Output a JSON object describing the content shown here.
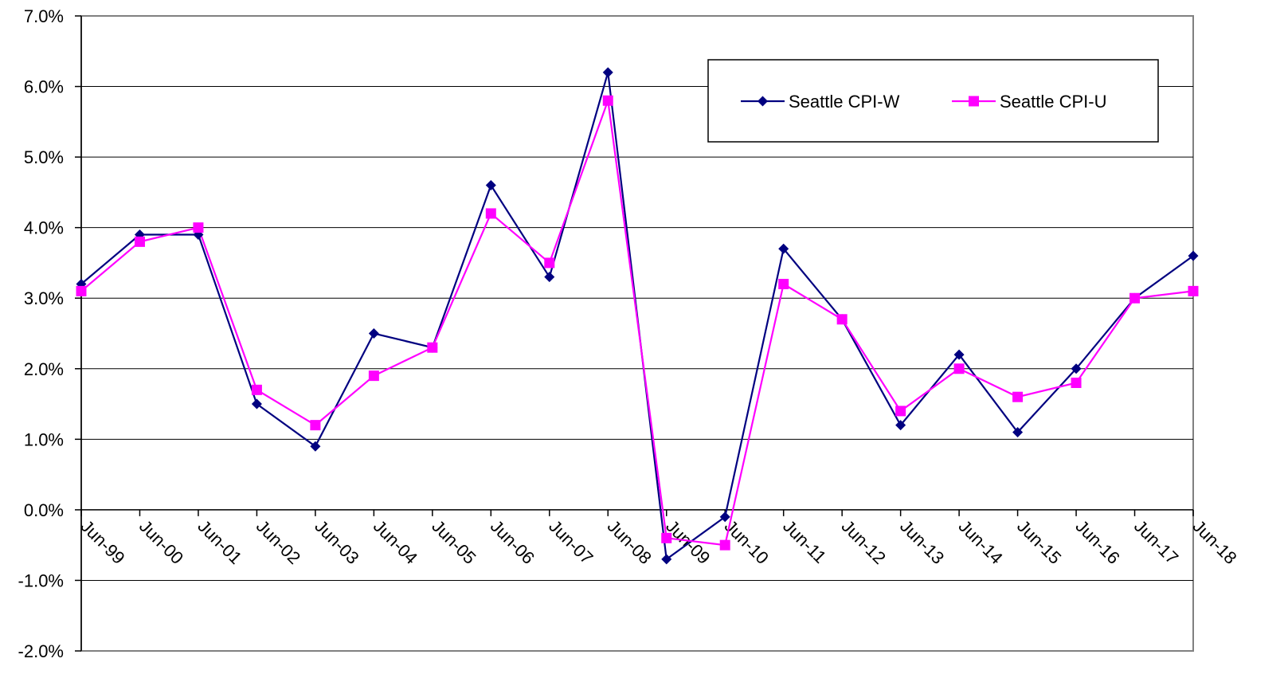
{
  "chart_data": {
    "type": "line",
    "title": "",
    "xlabel": "",
    "ylabel": "",
    "categories": [
      "Jun-99",
      "Jun-00",
      "Jun-01",
      "Jun-02",
      "Jun-03",
      "Jun-04",
      "Jun-05",
      "Jun-06",
      "Jun-07",
      "Jun-08",
      "Jun-09",
      "Jun-10",
      "Jun-11",
      "Jun-12",
      "Jun-13",
      "Jun-14",
      "Jun-15",
      "Jun-16",
      "Jun-17",
      "Jun-18"
    ],
    "ylim": [
      -2.0,
      7.0
    ],
    "yticks": [
      -2.0,
      -1.0,
      0.0,
      1.0,
      2.0,
      3.0,
      4.0,
      5.0,
      6.0,
      7.0
    ],
    "ytick_labels": [
      "-2.0%",
      "-1.0%",
      "0.0%",
      "1.0%",
      "2.0%",
      "3.0%",
      "4.0%",
      "5.0%",
      "6.0%",
      "7.0%"
    ],
    "grid": true,
    "legend_position": "top-right",
    "series": [
      {
        "name": "Seattle CPI-W",
        "color": "#000080",
        "marker": "diamond",
        "values": [
          3.2,
          3.9,
          3.9,
          1.5,
          0.9,
          2.5,
          2.3,
          4.6,
          3.3,
          6.2,
          -0.7,
          -0.1,
          3.7,
          2.7,
          1.2,
          2.2,
          1.1,
          2.0,
          3.0,
          3.6
        ]
      },
      {
        "name": "Seattle CPI-U",
        "color": "#FF00FF",
        "marker": "square",
        "values": [
          3.1,
          3.8,
          4.0,
          1.7,
          1.2,
          1.9,
          2.3,
          4.2,
          3.5,
          5.8,
          -0.4,
          -0.5,
          3.2,
          2.7,
          1.4,
          2.0,
          1.6,
          1.8,
          3.0,
          3.1
        ]
      }
    ]
  }
}
